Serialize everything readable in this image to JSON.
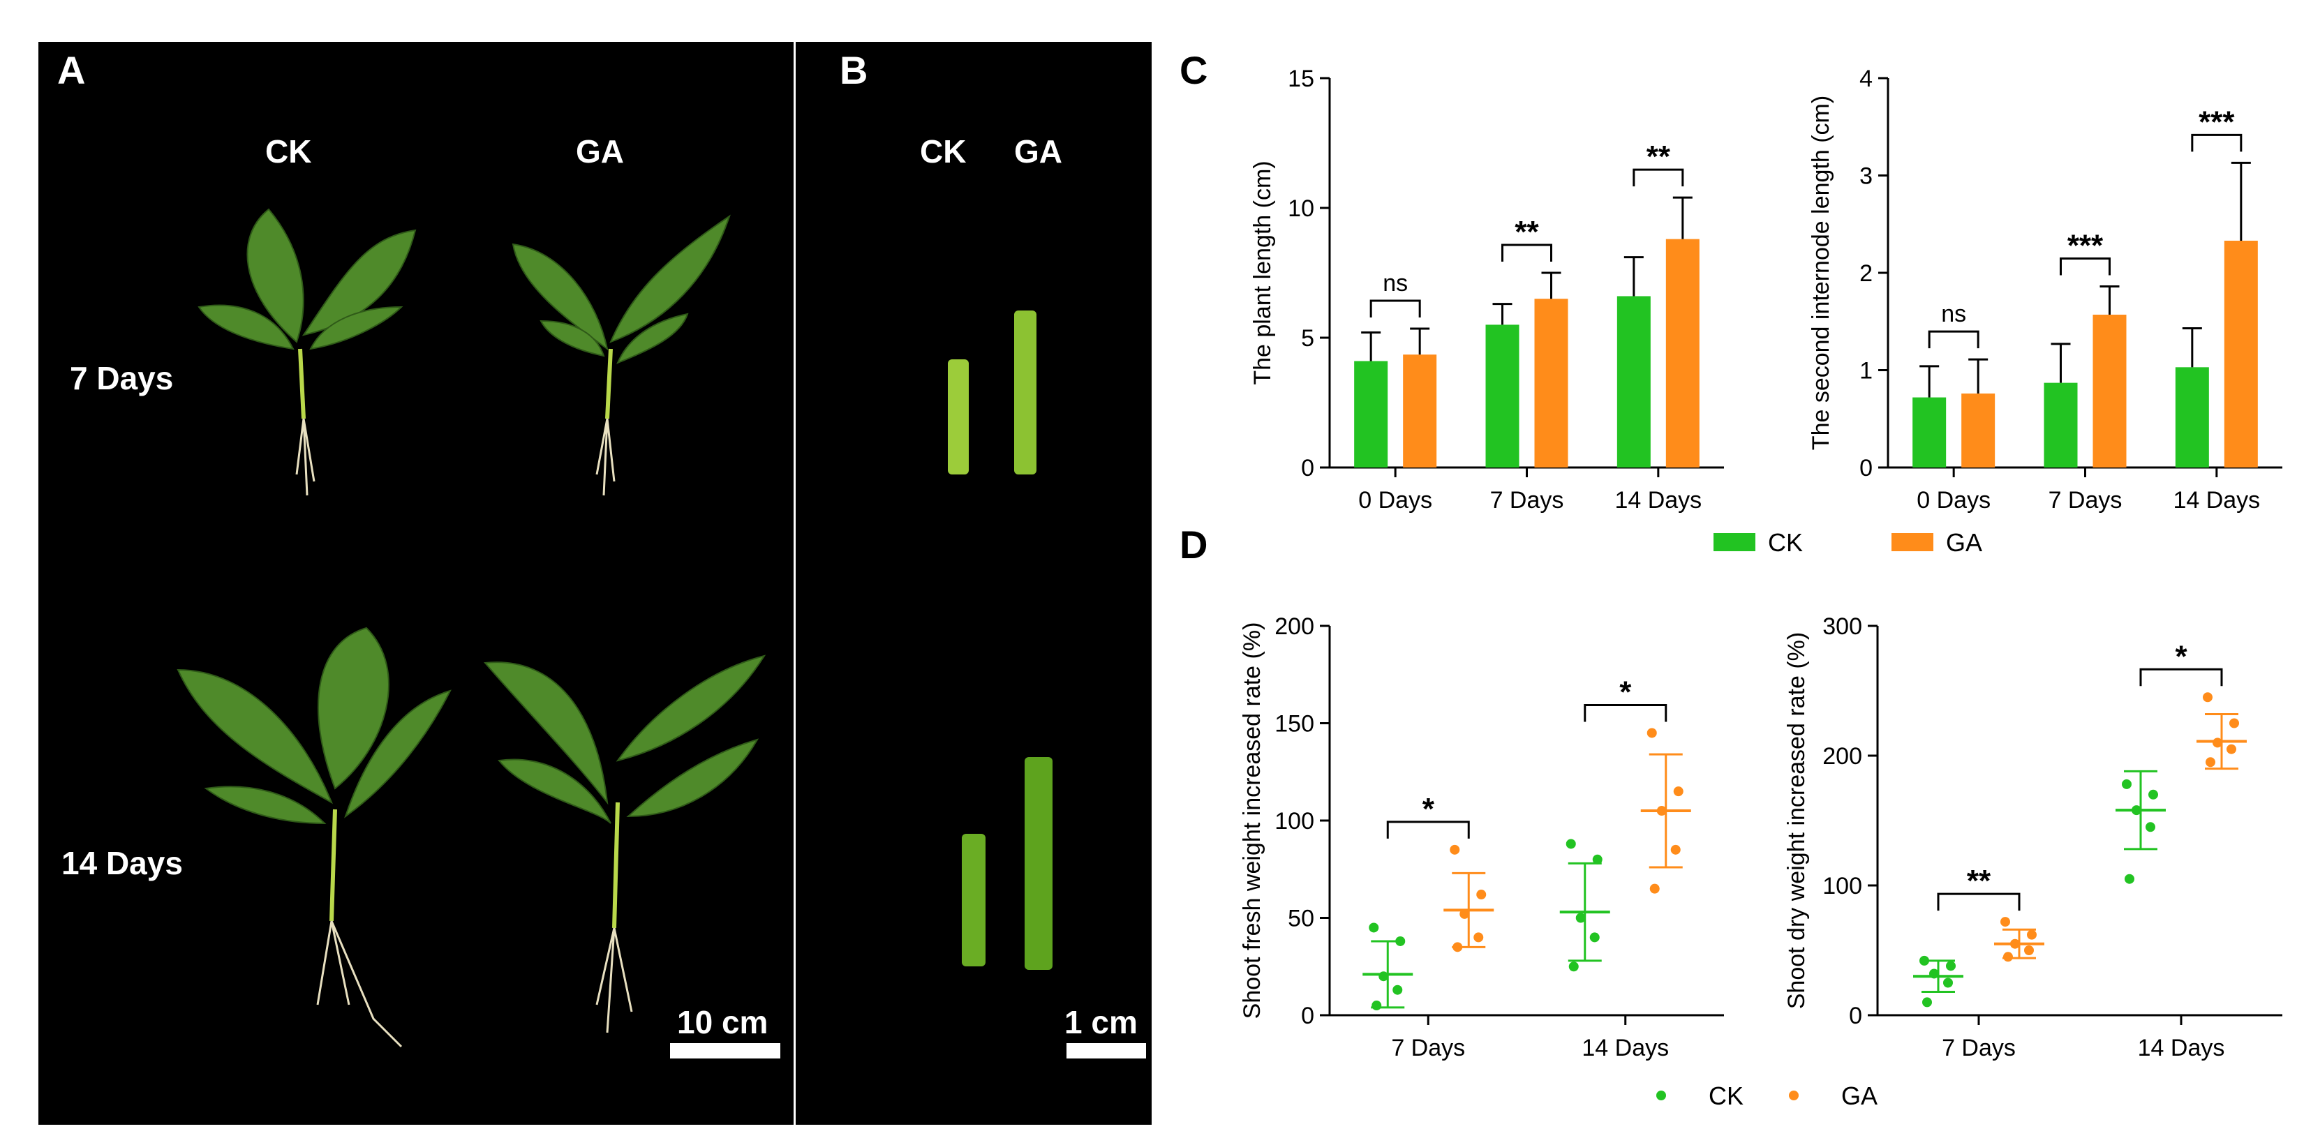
{
  "figure": {
    "panel_labels": {
      "A": "A",
      "B": "B",
      "C": "C",
      "D": "D"
    },
    "photo_a": {
      "col_ck": "CK",
      "col_ga": "GA",
      "row_7": "7 Days",
      "row_14": "14 Days",
      "scale_bar": "10 cm"
    },
    "photo_b": {
      "col_ck": "CK",
      "col_ga": "GA",
      "scale_bar": "1 cm"
    },
    "legend_bar": [
      {
        "label": "CK",
        "color": "#22c322"
      },
      {
        "label": "GA",
        "color": "#ff8c1a"
      }
    ],
    "legend_dot": [
      {
        "label": "CK",
        "color": "#22c322"
      },
      {
        "label": "GA",
        "color": "#ff8c1a"
      }
    ],
    "colors": {
      "CK": "#22c322",
      "GA": "#ff8c1a"
    }
  },
  "chart_data": [
    {
      "panel": "C-left",
      "type": "bar",
      "ylabel": "The plant length (cm)",
      "xlabel": "",
      "categories": [
        "0 Days",
        "7 Days",
        "14 Days"
      ],
      "ylim": [
        0,
        15
      ],
      "yticks": [
        0,
        5,
        10,
        15
      ],
      "series": [
        {
          "name": "CK",
          "values": [
            4.1,
            5.5,
            6.6
          ],
          "errors": [
            1.1,
            0.8,
            1.5
          ]
        },
        {
          "name": "GA",
          "values": [
            4.35,
            6.5,
            8.8
          ],
          "errors": [
            1.0,
            1.0,
            1.6
          ]
        }
      ],
      "significance": [
        "ns",
        "**",
        "**"
      ]
    },
    {
      "panel": "C-right",
      "type": "bar",
      "ylabel": "The second internode length (cm)",
      "xlabel": "",
      "categories": [
        "0 Days",
        "7 Days",
        "14 Days"
      ],
      "ylim": [
        0,
        4
      ],
      "yticks": [
        0,
        1,
        2,
        3,
        4
      ],
      "series": [
        {
          "name": "CK",
          "values": [
            0.72,
            0.87,
            1.03
          ],
          "errors": [
            0.32,
            0.4,
            0.4
          ]
        },
        {
          "name": "GA",
          "values": [
            0.76,
            1.57,
            2.33
          ],
          "errors": [
            0.35,
            0.29,
            0.8
          ]
        }
      ],
      "significance": [
        "ns",
        "***",
        "***"
      ]
    },
    {
      "panel": "D-left",
      "type": "scatter",
      "ylabel": "Shoot fresh weight increased rate (%)",
      "xlabel": "",
      "categories": [
        "7 Days",
        "14 Days"
      ],
      "ylim": [
        0,
        200
      ],
      "yticks": [
        0,
        50,
        100,
        150,
        200
      ],
      "series": [
        {
          "name": "CK",
          "points": [
            [
              5,
              13,
              20,
              38,
              45
            ],
            [
              25,
              40,
              50,
              80,
              88
            ]
          ],
          "mean": [
            21,
            53
          ],
          "sd": [
            17,
            25
          ]
        },
        {
          "name": "GA",
          "points": [
            [
              35,
              40,
              52,
              62,
              85
            ],
            [
              65,
              85,
              105,
              115,
              145
            ]
          ],
          "mean": [
            54,
            105
          ],
          "sd": [
            19,
            29
          ]
        }
      ],
      "significance": [
        "*",
        "*"
      ]
    },
    {
      "panel": "D-right",
      "type": "scatter",
      "ylabel": "Shoot dry weight increased rate (%)",
      "xlabel": "",
      "categories": [
        "7 Days",
        "14 Days"
      ],
      "ylim": [
        0,
        300
      ],
      "yticks": [
        0,
        100,
        200,
        300
      ],
      "series": [
        {
          "name": "CK",
          "points": [
            [
              10,
              25,
              32,
              38,
              42
            ],
            [
              105,
              145,
              158,
              170,
              178
            ]
          ],
          "mean": [
            30,
            158
          ],
          "sd": [
            12,
            30
          ]
        },
        {
          "name": "GA",
          "points": [
            [
              45,
              50,
              55,
              62,
              72
            ],
            [
              195,
              205,
              210,
              225,
              245
            ]
          ],
          "mean": [
            55,
            211
          ],
          "sd": [
            11,
            21
          ]
        }
      ],
      "significance": [
        "**",
        "*"
      ]
    }
  ]
}
